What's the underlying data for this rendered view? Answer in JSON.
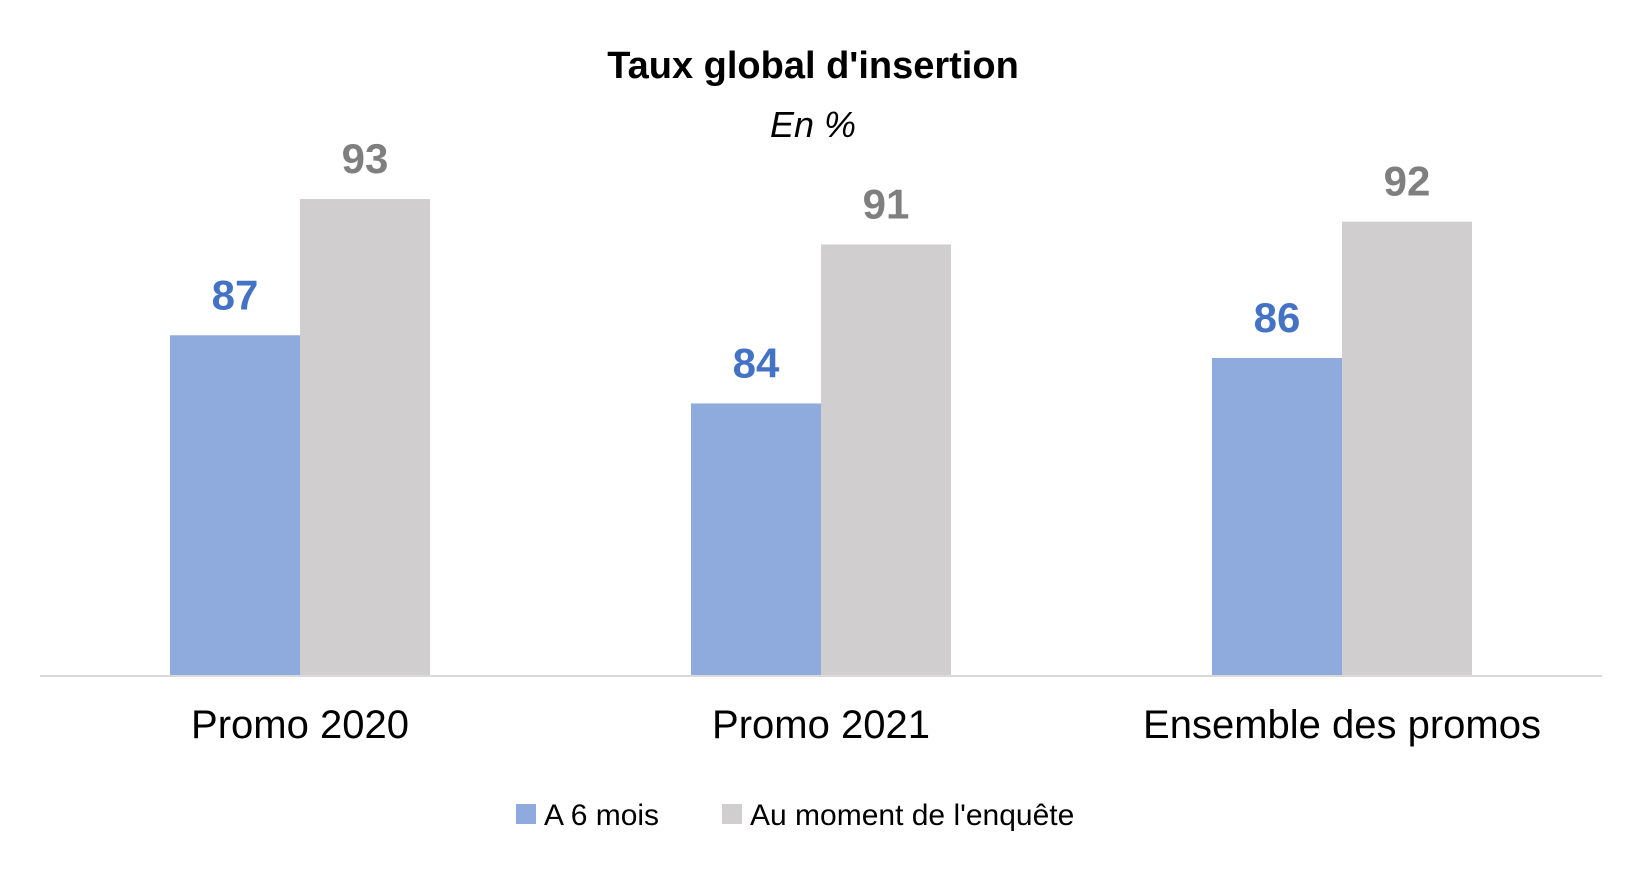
{
  "chart_data": {
    "type": "bar",
    "title": "Taux global d'insertion",
    "subtitle": "En %",
    "categories": [
      "Promo 2020",
      "Promo 2021",
      "Ensemble des promos"
    ],
    "series": [
      {
        "name": "A 6 mois",
        "values": [
          87,
          84,
          86
        ],
        "color": "#8faadc",
        "label_color": "#4472c4"
      },
      {
        "name": "Au moment de l'enquête",
        "values": [
          93,
          91,
          92
        ],
        "color": "#d0cece",
        "label_color": "#7f7f7f"
      }
    ],
    "xlabel": "",
    "ylabel": "",
    "ylim": [
      72,
      100
    ],
    "grid": false,
    "legend": "bottom",
    "axis_color": "#d9d9d9"
  }
}
